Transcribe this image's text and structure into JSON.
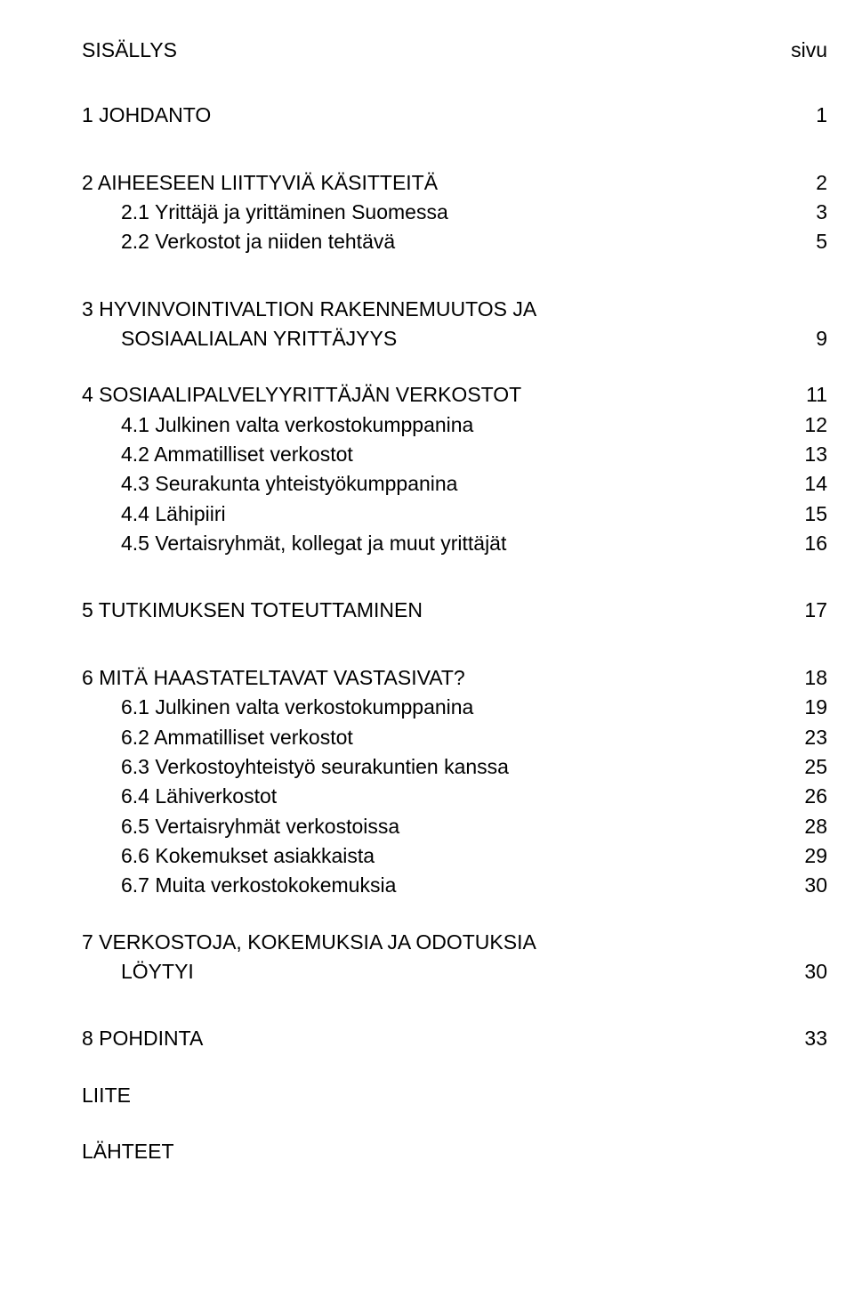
{
  "header": {
    "title": "SISÄLLYS",
    "page_label": "sivu"
  },
  "toc": [
    {
      "kind": "top",
      "label": "1  JOHDANTO",
      "page": "1"
    },
    {
      "kind": "top",
      "label": "2  AIHEESEEN LIITTYVIÄ KÄSITTEITÄ",
      "page": "2",
      "gap": "lg"
    },
    {
      "kind": "sub",
      "label": "2.1 Yrittäjä ja yrittäminen Suomessa",
      "page": "3"
    },
    {
      "kind": "sub",
      "label": "2.2 Verkostot ja niiden tehtävä",
      "page": "5"
    },
    {
      "kind": "multi",
      "lines": [
        "3  HYVINVOINTIVALTION RAKENNEMUUTOS JA",
        "SOSIAALIALAN YRITTÄJYYS"
      ],
      "page": "9",
      "gap": "lg"
    },
    {
      "kind": "top",
      "label": "4  SOSIAALIPALVELYYRITTÄJÄN VERKOSTOT",
      "page": "11",
      "gap": "md"
    },
    {
      "kind": "sub",
      "label": "4.1 Julkinen valta verkostokumppanina",
      "page": "12"
    },
    {
      "kind": "sub",
      "label": "4.2 Ammatilliset verkostot",
      "page": "13"
    },
    {
      "kind": "sub",
      "label": "4.3 Seurakunta yhteistyökumppanina",
      "page": "14"
    },
    {
      "kind": "sub",
      "label": "4.4 Lähipiiri",
      "page": "15"
    },
    {
      "kind": "sub",
      "label": "4.5 Vertaisryhmät, kollegat ja muut yrittäjät",
      "page": "16"
    },
    {
      "kind": "top",
      "label": "5  TUTKIMUKSEN TOTEUTTAMINEN",
      "page": "17",
      "gap": "lg"
    },
    {
      "kind": "top",
      "label": "6  MITÄ HAASTATELTAVAT VASTASIVAT?",
      "page": "18",
      "gap": "lg"
    },
    {
      "kind": "sub",
      "label": "6.1 Julkinen valta verkostokumppanina",
      "page": "19"
    },
    {
      "kind": "sub",
      "label": "6.2 Ammatilliset verkostot",
      "page": "23"
    },
    {
      "kind": "sub",
      "label": "6.3 Verkostoyhteistyö seurakuntien kanssa",
      "page": "25"
    },
    {
      "kind": "sub",
      "label": "6.4 Lähiverkostot",
      "page": "26"
    },
    {
      "kind": "sub",
      "label": "6.5 Vertaisryhmät verkostoissa",
      "page": "28"
    },
    {
      "kind": "sub",
      "label": "6.6 Kokemukset asiakkaista",
      "page": "29"
    },
    {
      "kind": "sub",
      "label": "6.7 Muita verkostokokemuksia",
      "page": "30"
    },
    {
      "kind": "multi",
      "lines": [
        "7  VERKOSTOJA, KOKEMUKSIA JA ODOTUKSIA",
        "LÖYTYI"
      ],
      "page": "30",
      "gap": "md"
    },
    {
      "kind": "top",
      "label": "8  POHDINTA",
      "page": "33",
      "gap": "lg"
    },
    {
      "kind": "plain",
      "label": "LIITE",
      "gap": "md"
    },
    {
      "kind": "plain",
      "label": "LÄHTEET",
      "gap": "md"
    }
  ]
}
